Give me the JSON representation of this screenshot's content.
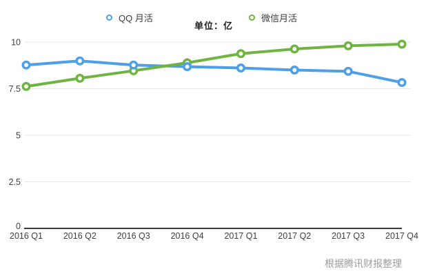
{
  "header": {
    "unit_label": "单位：亿"
  },
  "footer": {
    "source_note": "根据腾讯财报整理"
  },
  "chart_data": {
    "type": "line",
    "title": "",
    "categories": [
      "2016 Q1",
      "2016 Q2",
      "2016 Q3",
      "2016 Q4",
      "2017 Q1",
      "2017 Q2",
      "2017 Q3",
      "2017 Q4"
    ],
    "series": [
      {
        "name": "QQ 月活",
        "color": "#4D9FE8",
        "values": [
          8.77,
          8.99,
          8.77,
          8.68,
          8.61,
          8.5,
          8.43,
          7.83
        ]
      },
      {
        "name": "微信月活",
        "color": "#6FB441",
        "values": [
          7.62,
          8.06,
          8.46,
          8.89,
          9.38,
          9.63,
          9.8,
          9.89
        ]
      }
    ],
    "xlabel": "",
    "ylabel": "",
    "unit": "亿",
    "ylim": [
      0,
      10
    ],
    "yticks": [
      0,
      2.5,
      5,
      7.5,
      10
    ],
    "ytick_labels": [
      "0",
      "2.5",
      "5",
      "7.5",
      "10"
    ],
    "grid": true,
    "legend_position": "top",
    "axis_color": "#3a3a3a",
    "gridline_color": "#e9e9e9"
  }
}
